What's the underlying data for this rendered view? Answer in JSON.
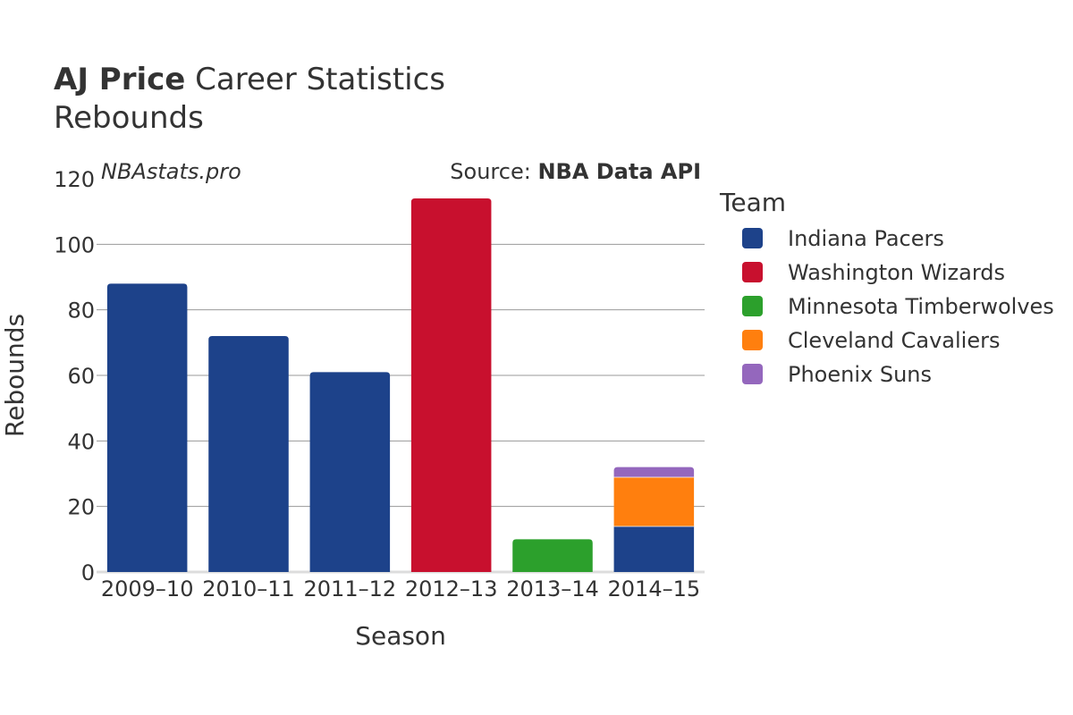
{
  "title": {
    "name": "AJ Price",
    "rest": " Career Statistics",
    "subtitle": "Rebounds"
  },
  "watermark": "NBAstats.pro",
  "source": {
    "prefix": "Source: ",
    "name": "NBA Data API"
  },
  "legend": {
    "title": "Team"
  },
  "colors": {
    "Indiana Pacers": "#1d428a",
    "Washington Wizards": "#c8102e",
    "Minnesota Timberwolves": "#2ca02c",
    "Cleveland Cavaliers": "#ff7f0e",
    "Phoenix Suns": "#9467bd"
  },
  "chart_data": {
    "type": "bar",
    "stacked": true,
    "xlabel": "Season",
    "ylabel": "Rebounds",
    "ylim": [
      0,
      120
    ],
    "yticks": [
      0,
      20,
      40,
      60,
      80,
      100,
      120
    ],
    "grid": true,
    "legend_position": "right",
    "categories": [
      "2009–10",
      "2010–11",
      "2011–12",
      "2012–13",
      "2013–14",
      "2014–15"
    ],
    "series": [
      {
        "name": "Indiana Pacers",
        "values": [
          88,
          72,
          61,
          0,
          0,
          14
        ]
      },
      {
        "name": "Washington Wizards",
        "values": [
          0,
          0,
          0,
          114,
          0,
          0
        ]
      },
      {
        "name": "Minnesota Timberwolves",
        "values": [
          0,
          0,
          0,
          0,
          10,
          0
        ]
      },
      {
        "name": "Cleveland Cavaliers",
        "values": [
          0,
          0,
          0,
          0,
          0,
          15
        ]
      },
      {
        "name": "Phoenix Suns",
        "values": [
          0,
          0,
          0,
          0,
          0,
          3
        ]
      }
    ]
  }
}
